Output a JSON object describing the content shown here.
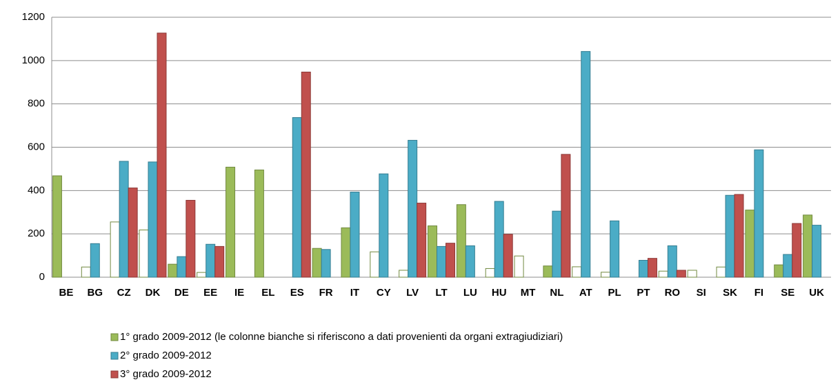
{
  "chart_data": {
    "type": "bar",
    "categories": [
      "BE",
      "BG",
      "CZ",
      "DK",
      "DE",
      "EE",
      "IE",
      "EL",
      "ES",
      "FR",
      "IT",
      "CY",
      "LV",
      "LT",
      "LU",
      "HU",
      "MT",
      "NL",
      "AT",
      "PL",
      "PT",
      "RO",
      "SI",
      "SK",
      "FI",
      "SE",
      "UK"
    ],
    "series": [
      {
        "name": "1° grado 2009-2012 (le colonne bianche si riferiscono a dati provenienti da organi extragiudiziari)",
        "color": "#9bbb59",
        "stroke": "#71893f",
        "values": [
          468,
          47,
          255,
          218,
          60,
          22,
          508,
          495,
          null,
          133,
          228,
          117,
          32,
          237,
          335,
          40,
          98,
          52,
          48,
          23,
          null,
          28,
          32,
          47,
          310,
          57,
          287
        ],
        "colors": [
          "#9bbb59",
          "#ffffff",
          "#ffffff",
          "#ffffff",
          "#9bbb59",
          "#ffffff",
          "#9bbb59",
          "#9bbb59",
          "#9bbb59",
          "#9bbb59",
          "#9bbb59",
          "#ffffff",
          "#ffffff",
          "#9bbb59",
          "#9bbb59",
          "#ffffff",
          "#ffffff",
          "#9bbb59",
          "#ffffff",
          "#ffffff",
          "#9bbb59",
          "#ffffff",
          "#ffffff",
          "#ffffff",
          "#9bbb59",
          "#9bbb59",
          "#9bbb59"
        ]
      },
      {
        "name": "2° grado 2009-2012",
        "color": "#4bacc6",
        "stroke": "#357d91",
        "values": [
          null,
          155,
          535,
          532,
          95,
          152,
          null,
          null,
          737,
          128,
          393,
          477,
          632,
          142,
          145,
          350,
          null,
          305,
          1042,
          260,
          78,
          145,
          null,
          378,
          588,
          105,
          240
        ]
      },
      {
        "name": "3° grado 2009-2012",
        "color": "#c0504d",
        "stroke": "#8c3836",
        "values": [
          null,
          null,
          412,
          1127,
          355,
          142,
          null,
          null,
          947,
          null,
          null,
          null,
          342,
          157,
          null,
          198,
          null,
          567,
          null,
          null,
          87,
          32,
          null,
          382,
          null,
          248,
          null
        ]
      }
    ],
    "ylim": [
      0,
      1200
    ],
    "yticks": [
      0,
      200,
      400,
      600,
      800,
      1000,
      1200
    ],
    "grid": true,
    "legend": "bottom"
  }
}
